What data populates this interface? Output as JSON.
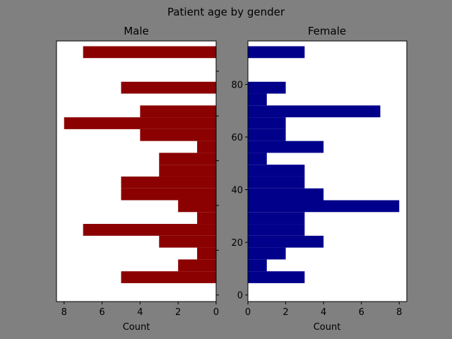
{
  "suptitle": "Patient age by gender",
  "colors": {
    "background": "#808080",
    "male_bar": "#8b0000",
    "female_bar": "#00008b",
    "plot_bg": "#ffffff"
  },
  "chart_data": [
    {
      "type": "bar",
      "orientation": "horizontal",
      "title": "Male",
      "xlabel": "Count",
      "xlim": [
        8.4,
        0
      ],
      "x_inverted": true,
      "x_ticks": [
        8,
        6,
        4,
        2,
        0
      ],
      "ylim": [
        -2.5,
        96.5
      ],
      "y_ticks": [
        0,
        17,
        34,
        51,
        68,
        85
      ],
      "y_tick_labels_shown": false,
      "bin_width": 4.5,
      "bins": [
        {
          "start": 4.5,
          "count": 5
        },
        {
          "start": 9.0,
          "count": 2
        },
        {
          "start": 13.5,
          "count": 1
        },
        {
          "start": 18.0,
          "count": 3
        },
        {
          "start": 22.5,
          "count": 7
        },
        {
          "start": 27.0,
          "count": 1
        },
        {
          "start": 31.5,
          "count": 2
        },
        {
          "start": 36.0,
          "count": 5
        },
        {
          "start": 40.5,
          "count": 5
        },
        {
          "start": 45.0,
          "count": 3
        },
        {
          "start": 49.5,
          "count": 3
        },
        {
          "start": 54.0,
          "count": 1
        },
        {
          "start": 58.5,
          "count": 4
        },
        {
          "start": 63.0,
          "count": 8
        },
        {
          "start": 67.5,
          "count": 4
        },
        {
          "start": 76.5,
          "count": 5
        },
        {
          "start": 90.0,
          "count": 7
        }
      ]
    },
    {
      "type": "bar",
      "orientation": "horizontal",
      "title": "Female",
      "xlabel": "Count",
      "xlim": [
        0,
        8.4
      ],
      "x_ticks": [
        0,
        2,
        4,
        6,
        8
      ],
      "ylim": [
        -2.5,
        96.5
      ],
      "y_ticks": [
        0,
        20,
        40,
        60,
        80
      ],
      "bin_width": 4.5,
      "bins": [
        {
          "start": 4.5,
          "count": 3
        },
        {
          "start": 9.0,
          "count": 1
        },
        {
          "start": 13.5,
          "count": 2
        },
        {
          "start": 18.0,
          "count": 4
        },
        {
          "start": 22.5,
          "count": 3
        },
        {
          "start": 27.0,
          "count": 3
        },
        {
          "start": 31.5,
          "count": 8
        },
        {
          "start": 36.0,
          "count": 4
        },
        {
          "start": 40.5,
          "count": 3
        },
        {
          "start": 45.0,
          "count": 3
        },
        {
          "start": 49.5,
          "count": 1
        },
        {
          "start": 54.0,
          "count": 4
        },
        {
          "start": 58.5,
          "count": 2
        },
        {
          "start": 63.0,
          "count": 2
        },
        {
          "start": 67.5,
          "count": 7
        },
        {
          "start": 72.0,
          "count": 1
        },
        {
          "start": 76.5,
          "count": 2
        },
        {
          "start": 90.0,
          "count": 3
        }
      ]
    }
  ]
}
